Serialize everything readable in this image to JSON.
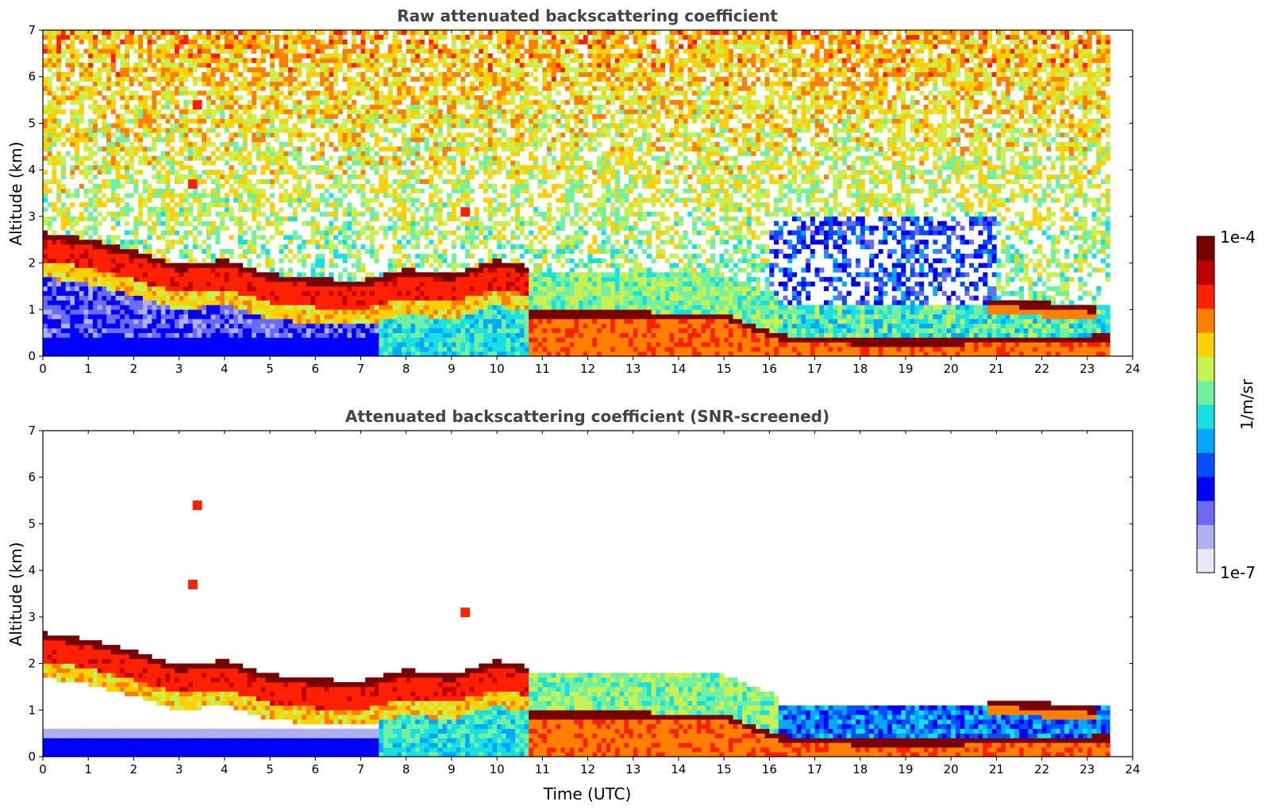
{
  "chart_data": [
    {
      "type": "heatmap",
      "title": "Raw attenuated backscattering coefficient",
      "xlabel": "",
      "ylabel": "Altitude (km)",
      "xlim": [
        0,
        24
      ],
      "ylim": [
        0,
        7
      ],
      "xticks": [
        "0",
        "1",
        "2",
        "3",
        "4",
        "5",
        "6",
        "7",
        "8",
        "9",
        "10",
        "11",
        "12",
        "13",
        "14",
        "15",
        "16",
        "17",
        "18",
        "19",
        "20",
        "21",
        "22",
        "23",
        "24"
      ],
      "yticks": [
        "0",
        "1",
        "2",
        "3",
        "4",
        "5",
        "6",
        "7"
      ],
      "data_end_time": 23.5,
      "features": {
        "aerosol_layer_top_km": [
          [
            0,
            2.6
          ],
          [
            1,
            2.45
          ],
          [
            2,
            2.2
          ],
          [
            3,
            1.9
          ],
          [
            4,
            2.0
          ],
          [
            5,
            1.7
          ],
          [
            6,
            1.6
          ],
          [
            7,
            1.55
          ],
          [
            8,
            1.8
          ],
          [
            9,
            1.7
          ],
          [
            10,
            2.0
          ],
          [
            10.7,
            1.85
          ]
        ],
        "upper_layer_2_km": [
          [
            20.8,
            1.15
          ],
          [
            22,
            1.1
          ],
          [
            23.2,
            1.0
          ]
        ],
        "boundary_layer_km": [
          [
            10.7,
            0.9
          ],
          [
            13,
            0.9
          ],
          [
            15,
            0.85
          ],
          [
            16.2,
            0.4
          ],
          [
            18,
            0.3
          ],
          [
            20,
            0.3
          ],
          [
            23.5,
            0.4
          ]
        ],
        "isolated_features": [
          {
            "time": 3.3,
            "altitude_km": 3.7
          },
          {
            "time": 9.3,
            "altitude_km": 3.1
          },
          {
            "time": 3.4,
            "altitude_km": 5.4
          }
        ]
      },
      "noise": "high above 2 km"
    },
    {
      "type": "heatmap",
      "title": "Attenuated backscattering coefficient (SNR-screened)",
      "xlabel": "Time (UTC)",
      "ylabel": "Altitude (km)",
      "xlim": [
        0,
        24
      ],
      "ylim": [
        0,
        7
      ],
      "xticks": [
        "0",
        "1",
        "2",
        "3",
        "4",
        "5",
        "6",
        "7",
        "8",
        "9",
        "10",
        "11",
        "12",
        "13",
        "14",
        "15",
        "16",
        "17",
        "18",
        "19",
        "20",
        "21",
        "22",
        "23",
        "24"
      ],
      "yticks": [
        "0",
        "1",
        "2",
        "3",
        "4",
        "5",
        "6",
        "7"
      ],
      "data_end_time": 23.5,
      "noise": "screened"
    }
  ],
  "colorbar": {
    "max_label": "1e-4",
    "min_label": "1e-7",
    "label": "1/m/sr",
    "colors": [
      "#e8e8fa",
      "#b0b0f0",
      "#6a6af5",
      "#0000ff",
      "#0050ff",
      "#00a8ff",
      "#18e0e0",
      "#70f0a0",
      "#c8f050",
      "#ffd000",
      "#ff8000",
      "#ff2000",
      "#c00000",
      "#780000"
    ]
  }
}
